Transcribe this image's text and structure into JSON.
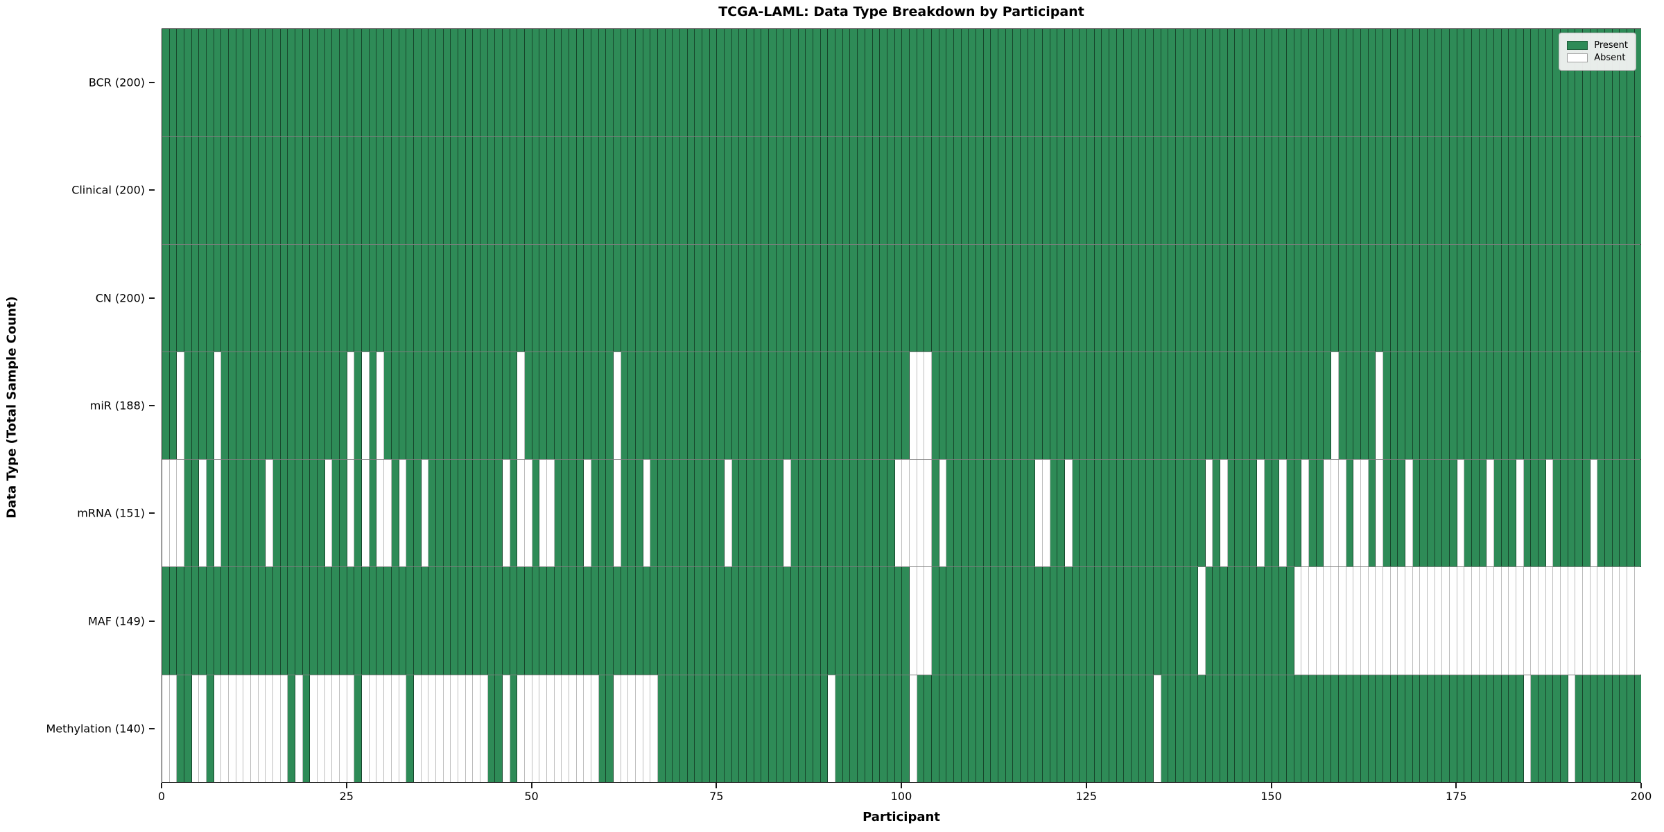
{
  "chart": {
    "title": "TCGA-LAML: Data Type Breakdown by Participant",
    "xlabel": "Participant",
    "ylabel": "Data Type (Total Sample Count)",
    "legend": {
      "present_label": "Present",
      "absent_label": "Absent"
    }
  },
  "chart_data": {
    "type": "heatmap",
    "title": "TCGA-LAML: Data Type Breakdown by Participant",
    "xlabel": "Participant",
    "ylabel": "Data Type (Total Sample Count)",
    "n_participants": 200,
    "x_ticks": [
      0,
      25,
      50,
      75,
      100,
      125,
      150,
      175,
      200
    ],
    "legend_entries": [
      "Present",
      "Absent"
    ],
    "legend_position": "upper right",
    "colors": {
      "present": "#2e8b57",
      "absent": "#ffffff"
    },
    "grid": true,
    "rows": [
      {
        "name": "BCR",
        "total": 200,
        "label": "BCR (200)",
        "absent": []
      },
      {
        "name": "Clinical",
        "total": 200,
        "label": "Clinical (200)",
        "absent": []
      },
      {
        "name": "CN",
        "total": 200,
        "label": "CN (200)",
        "absent": []
      },
      {
        "name": "miR",
        "total": 188,
        "label": "miR (188)",
        "absent": [
          2,
          7,
          25,
          27,
          29,
          48,
          61,
          101,
          102,
          103,
          158,
          164
        ]
      },
      {
        "name": "mRNA",
        "total": 151,
        "label": "mRNA (151)",
        "absent": [
          0,
          1,
          2,
          5,
          7,
          14,
          22,
          25,
          27,
          29,
          30,
          32,
          35,
          46,
          48,
          49,
          51,
          52,
          57,
          61,
          65,
          76,
          84,
          99,
          100,
          101,
          102,
          103,
          105,
          118,
          119,
          122,
          141,
          143,
          148,
          151,
          154,
          157,
          158,
          159,
          161,
          162,
          164,
          168,
          175,
          179,
          183,
          187,
          193
        ]
      },
      {
        "name": "MAF",
        "total": 149,
        "label": "MAF (149)",
        "absent": [
          101,
          102,
          103,
          140,
          153,
          154,
          155,
          156,
          157,
          158,
          159,
          160,
          161,
          162,
          163,
          164,
          165,
          166,
          167,
          168,
          169,
          170,
          171,
          172,
          173,
          174,
          175,
          176,
          177,
          178,
          179,
          180,
          181,
          182,
          183,
          184,
          185,
          186,
          187,
          188,
          189,
          190,
          191,
          192,
          193,
          194,
          195,
          196,
          197,
          198,
          199
        ]
      },
      {
        "name": "Methylation",
        "total": 140,
        "label": "Methylation (140)",
        "absent": [
          0,
          1,
          4,
          5,
          7,
          8,
          9,
          10,
          11,
          12,
          13,
          14,
          15,
          16,
          18,
          20,
          21,
          22,
          23,
          24,
          25,
          27,
          28,
          29,
          30,
          31,
          32,
          34,
          35,
          36,
          37,
          38,
          39,
          40,
          41,
          42,
          43,
          46,
          48,
          49,
          50,
          51,
          52,
          53,
          54,
          55,
          56,
          57,
          58,
          61,
          62,
          63,
          64,
          65,
          66,
          90,
          101,
          134,
          184,
          190
        ]
      }
    ]
  }
}
